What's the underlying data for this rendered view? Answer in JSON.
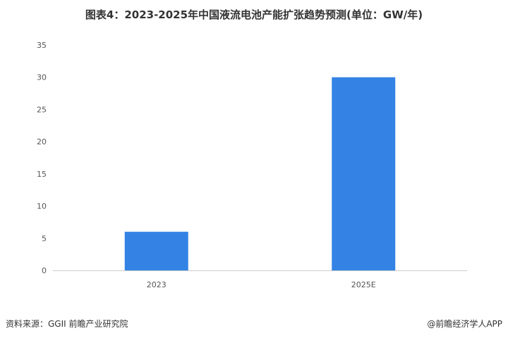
{
  "chart_data": {
    "type": "bar",
    "title": "图表4：2023-2025年中国液流电池产能扩张趋势预测(单位：GW/年)",
    "categories": [
      "2023",
      "2025E"
    ],
    "values": [
      6,
      30
    ],
    "ylim": [
      0,
      35
    ],
    "yticks": [
      0,
      5,
      10,
      15,
      20,
      25,
      30,
      35
    ],
    "xlabel": "",
    "ylabel": "",
    "grid": false,
    "bar_color": "#3483e4"
  },
  "footer": {
    "source": "资料来源：GGII 前瞻产业研究院",
    "credit": "@前瞻经济学人APP"
  }
}
